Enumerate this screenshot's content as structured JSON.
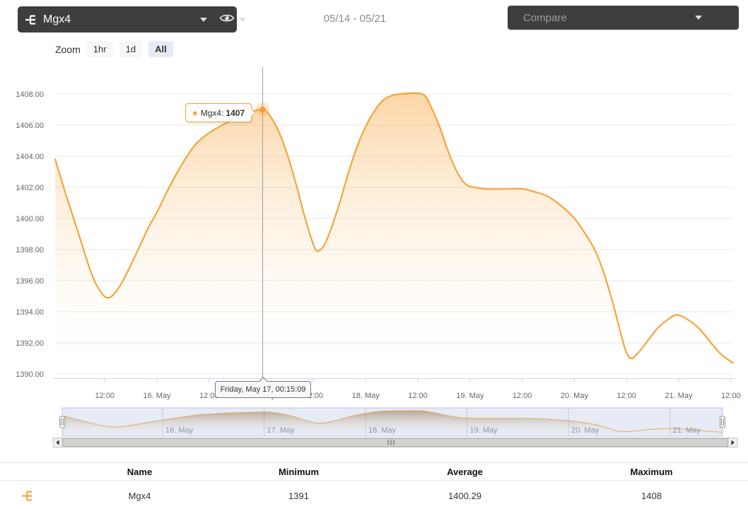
{
  "header": {
    "series_selector": {
      "label": "Mgx4"
    },
    "date_range": "05/14 - 05/21",
    "compare_label": "Compare"
  },
  "zoom_controls": {
    "label": "Zoom",
    "options": [
      "1hr",
      "1d",
      "All"
    ],
    "active": "All"
  },
  "tooltips": {
    "series_name": "Mgx4",
    "series_value": "1407",
    "datetime": "Friday, May 17, 00:15:09"
  },
  "chart_data": {
    "type": "area",
    "title": "",
    "xlabel": "",
    "ylabel": "",
    "ylim": [
      1389,
      1409.5
    ],
    "grid": true,
    "series": [
      {
        "name": "Mgx4",
        "color": "#F7A43C",
        "points": [
          [
            0.6,
            1403.8
          ],
          [
            3,
            1401.6
          ],
          [
            6,
            1399.0
          ],
          [
            9,
            1396.4
          ],
          [
            11,
            1395.3
          ],
          [
            12.5,
            1394.9
          ],
          [
            14,
            1395.1
          ],
          [
            16,
            1395.9
          ],
          [
            19,
            1397.6
          ],
          [
            22,
            1399.4
          ],
          [
            24,
            1400.4
          ],
          [
            27,
            1402.1
          ],
          [
            30,
            1403.6
          ],
          [
            33,
            1404.8
          ],
          [
            36,
            1405.5
          ],
          [
            39,
            1406.0
          ],
          [
            42,
            1406.4
          ],
          [
            45,
            1406.8
          ],
          [
            48.3,
            1407.0
          ],
          [
            50,
            1406.6
          ],
          [
            52,
            1405.6
          ],
          [
            54,
            1404.1
          ],
          [
            56,
            1402.2
          ],
          [
            58,
            1400.1
          ],
          [
            60,
            1398.3
          ],
          [
            61,
            1397.9
          ],
          [
            62.5,
            1398.3
          ],
          [
            64,
            1399.3
          ],
          [
            66,
            1401.0
          ],
          [
            68,
            1402.9
          ],
          [
            70,
            1404.6
          ],
          [
            72,
            1405.9
          ],
          [
            74,
            1406.9
          ],
          [
            76,
            1407.6
          ],
          [
            78,
            1407.9
          ],
          [
            80,
            1408.0
          ],
          [
            85,
            1408.0
          ],
          [
            87,
            1407.2
          ],
          [
            89,
            1405.9
          ],
          [
            91,
            1404.3
          ],
          [
            93,
            1403.0
          ],
          [
            95,
            1402.2
          ],
          [
            97,
            1402.0
          ],
          [
            100,
            1401.9
          ],
          [
            104,
            1401.9
          ],
          [
            108,
            1401.9
          ],
          [
            111,
            1401.7
          ],
          [
            114,
            1401.4
          ],
          [
            117,
            1400.8
          ],
          [
            120,
            1400.0
          ],
          [
            123,
            1398.8
          ],
          [
            125,
            1397.8
          ],
          [
            127,
            1396.3
          ],
          [
            129,
            1394.4
          ],
          [
            130.5,
            1392.8
          ],
          [
            131.8,
            1391.5
          ],
          [
            133,
            1391.0
          ],
          [
            134.5,
            1391.3
          ],
          [
            136.5,
            1392.0
          ],
          [
            139,
            1392.9
          ],
          [
            141.5,
            1393.5
          ],
          [
            143.5,
            1393.8
          ],
          [
            145.5,
            1393.6
          ],
          [
            148,
            1393.1
          ],
          [
            150,
            1392.5
          ],
          [
            152,
            1391.8
          ],
          [
            154,
            1391.2
          ],
          [
            155.5,
            1390.9
          ],
          [
            156.5,
            1390.7
          ]
        ]
      }
    ],
    "time_origin_note": "t = hours since 15. May 00:00",
    "marked_point": {
      "t": 48.3,
      "v": 1407
    },
    "y_ticks": [
      {
        "label": "1408.00",
        "v": 1408
      },
      {
        "label": "1406.00",
        "v": 1406
      },
      {
        "label": "1404.00",
        "v": 1404
      },
      {
        "label": "1402.00",
        "v": 1402
      },
      {
        "label": "1400.00",
        "v": 1400
      },
      {
        "label": "1398.00",
        "v": 1398
      },
      {
        "label": "1396.00",
        "v": 1396
      },
      {
        "label": "1394.00",
        "v": 1394
      },
      {
        "label": "1392.00",
        "v": 1392
      },
      {
        "label": "1390.00",
        "v": 1390
      }
    ],
    "x_ticks": [
      {
        "label": "12:00",
        "t": 12
      },
      {
        "label": "16. May",
        "t": 24
      },
      {
        "label": "12:00",
        "t": 36
      },
      {
        "label": "17. May",
        "t": 48
      },
      {
        "label": "12:00",
        "t": 60
      },
      {
        "label": "18. May",
        "t": 72
      },
      {
        "label": "12:00",
        "t": 84
      },
      {
        "label": "19. May",
        "t": 96
      },
      {
        "label": "12:00",
        "t": 108
      },
      {
        "label": "20. May",
        "t": 120
      },
      {
        "label": "12:00",
        "t": 132
      },
      {
        "label": "21. May",
        "t": 144
      },
      {
        "label": "12:00",
        "t": 156
      }
    ],
    "navigator_ticks": [
      {
        "label": "16. May",
        "t": 24
      },
      {
        "label": "17. May",
        "t": 48
      },
      {
        "label": "18. May",
        "t": 72
      },
      {
        "label": "19. May",
        "t": 96
      },
      {
        "label": "20. May",
        "t": 120
      },
      {
        "label": "21. May",
        "t": 144
      }
    ]
  },
  "summary_table": {
    "columns": [
      "Name",
      "Minimum",
      "Average",
      "Maximum"
    ],
    "rows": [
      {
        "name": "Mgx4",
        "minimum": "1391",
        "average": "1400.29",
        "maximum": "1408"
      }
    ]
  },
  "colors": {
    "accent_orange": "#F7A43C",
    "topbar_bg": "#3E3E3E",
    "active_zoom_bg": "#E6EBF5",
    "gridline": "#E6E6E6",
    "axis_line": "#CCD6EB",
    "navigator_mask": "rgba(102,133,194,0.16)"
  }
}
